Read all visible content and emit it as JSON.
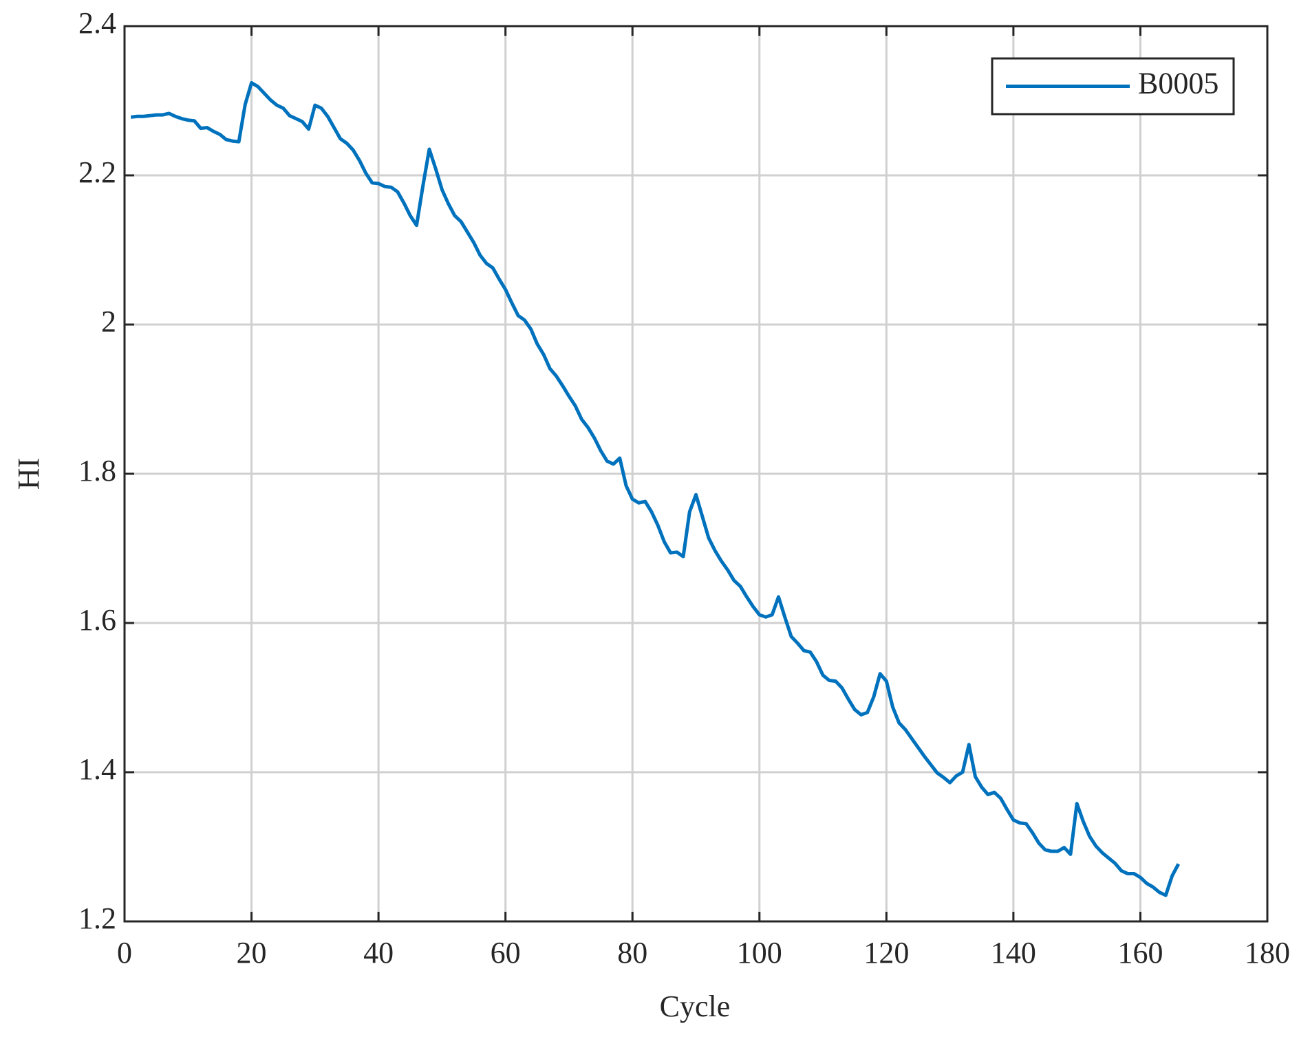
{
  "chart_data": {
    "type": "line",
    "xlabel": "Cycle",
    "ylabel": "HI",
    "x": [
      1,
      2,
      3,
      4,
      5,
      6,
      7,
      8,
      9,
      10,
      11,
      12,
      13,
      14,
      15,
      16,
      17,
      18,
      19,
      20,
      21,
      22,
      23,
      24,
      25,
      26,
      27,
      28,
      29,
      30,
      31,
      32,
      33,
      34,
      35,
      36,
      37,
      38,
      39,
      40,
      41,
      42,
      43,
      44,
      45,
      46,
      47,
      48,
      49,
      50,
      51,
      52,
      53,
      54,
      55,
      56,
      57,
      58,
      59,
      60,
      61,
      62,
      63,
      64,
      65,
      66,
      67,
      68,
      69,
      70,
      71,
      72,
      73,
      74,
      75,
      76,
      77,
      78,
      79,
      80,
      81,
      82,
      83,
      84,
      85,
      86,
      87,
      88,
      89,
      90,
      91,
      92,
      93,
      94,
      95,
      96,
      97,
      98,
      99,
      100,
      101,
      102,
      103,
      104,
      105,
      106,
      107,
      108,
      109,
      110,
      111,
      112,
      113,
      114,
      115,
      116,
      117,
      118,
      119,
      120,
      121,
      122,
      123,
      124,
      125,
      126,
      127,
      128,
      129,
      130,
      131,
      132,
      133,
      134,
      135,
      136,
      137,
      138,
      139,
      140,
      141,
      142,
      143,
      144,
      145,
      146,
      147,
      148,
      149,
      150,
      151,
      152,
      153,
      154,
      155,
      156,
      157,
      158,
      159,
      160,
      161,
      162,
      163,
      164,
      165,
      166
    ],
    "series": [
      {
        "name": "B0005",
        "color": "#0072bd",
        "values": [
          2.278,
          2.279,
          2.279,
          2.28,
          2.281,
          2.281,
          2.283,
          2.279,
          2.276,
          2.274,
          2.273,
          2.263,
          2.264,
          2.259,
          2.255,
          2.248,
          2.246,
          2.245,
          2.295,
          2.324,
          2.319,
          2.31,
          2.301,
          2.294,
          2.29,
          2.28,
          2.276,
          2.272,
          2.262,
          2.294,
          2.29,
          2.279,
          2.264,
          2.249,
          2.243,
          2.234,
          2.22,
          2.203,
          2.19,
          2.189,
          2.185,
          2.184,
          2.178,
          2.163,
          2.146,
          2.133,
          2.186,
          2.235,
          2.209,
          2.181,
          2.162,
          2.146,
          2.138,
          2.124,
          2.11,
          2.093,
          2.082,
          2.076,
          2.061,
          2.047,
          2.029,
          2.012,
          2.006,
          1.994,
          1.974,
          1.96,
          1.941,
          1.931,
          1.918,
          1.904,
          1.891,
          1.873,
          1.862,
          1.848,
          1.831,
          1.817,
          1.813,
          1.821,
          1.784,
          1.766,
          1.761,
          1.763,
          1.749,
          1.731,
          1.709,
          1.694,
          1.695,
          1.689,
          1.749,
          1.772,
          1.743,
          1.714,
          1.697,
          1.683,
          1.671,
          1.657,
          1.649,
          1.635,
          1.622,
          1.611,
          1.608,
          1.611,
          1.635,
          1.608,
          1.582,
          1.573,
          1.563,
          1.561,
          1.548,
          1.53,
          1.523,
          1.522,
          1.513,
          1.498,
          1.484,
          1.477,
          1.48,
          1.501,
          1.532,
          1.522,
          1.487,
          1.466,
          1.457,
          1.445,
          1.433,
          1.421,
          1.41,
          1.399,
          1.393,
          1.386,
          1.395,
          1.4,
          1.437,
          1.394,
          1.38,
          1.37,
          1.373,
          1.365,
          1.35,
          1.336,
          1.332,
          1.331,
          1.319,
          1.305,
          1.296,
          1.294,
          1.294,
          1.299,
          1.29,
          1.358,
          1.334,
          1.314,
          1.301,
          1.292,
          1.285,
          1.278,
          1.268,
          1.264,
          1.264,
          1.259,
          1.251,
          1.246,
          1.239,
          1.235,
          1.261,
          1.277
        ]
      }
    ],
    "xlim": [
      0,
      180
    ],
    "xticks": [
      0,
      20,
      40,
      60,
      80,
      100,
      120,
      140,
      160,
      180
    ],
    "ylim": [
      1.2,
      2.4
    ],
    "yticks": [
      1.2,
      1.4,
      1.6,
      1.8,
      2,
      2.2,
      2.4
    ],
    "grid": true,
    "legend": "upper right"
  }
}
